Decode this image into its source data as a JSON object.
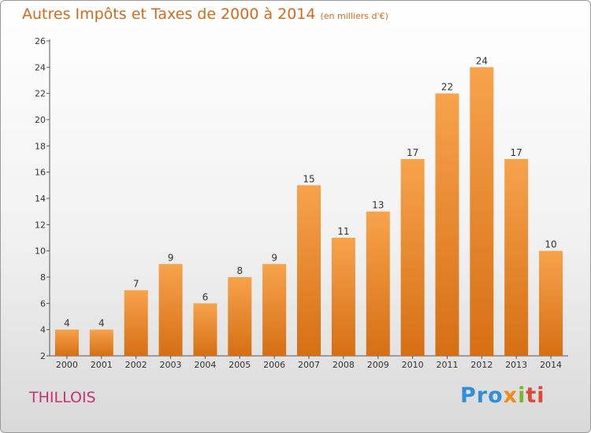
{
  "title": "Autres Impôts et Taxes de 2000 à 2014",
  "subtitle": "(en milliers d'€)",
  "town": "THILLOIS",
  "logo": {
    "parts": [
      "Pro",
      "x",
      "i",
      "ti"
    ],
    "colors": [
      "#2f8fd8",
      "#f08a1c",
      "#7ab82e",
      "#e0463a"
    ]
  },
  "chart_data": {
    "type": "bar",
    "categories": [
      "2000",
      "2001",
      "2002",
      "2003",
      "2004",
      "2005",
      "2006",
      "2007",
      "2008",
      "2009",
      "2010",
      "2011",
      "2012",
      "2013",
      "2014"
    ],
    "values": [
      4,
      4,
      7,
      9,
      6,
      8,
      9,
      15,
      11,
      13,
      17,
      22,
      24,
      17,
      10
    ],
    "ylim": [
      2,
      26
    ],
    "yticks": [
      2,
      4,
      6,
      8,
      10,
      12,
      14,
      16,
      18,
      20,
      22,
      24,
      26
    ],
    "bar_color_top": "#f7a34c",
    "bar_color_bottom": "#d66f14",
    "grid": false
  }
}
